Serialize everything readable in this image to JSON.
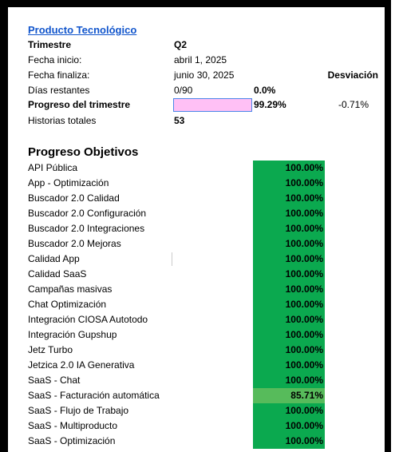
{
  "header": {
    "title": "Producto Tecnológico"
  },
  "summary": {
    "quarter": {
      "label": "Trimestre",
      "value": "Q2"
    },
    "start": {
      "label": "Fecha inicio:",
      "value": "abril 1, 2025"
    },
    "end": {
      "label": "Fecha finaliza:",
      "value": "junio 30, 2025",
      "deviation_header": "Desviación"
    },
    "days": {
      "label": "Días restantes",
      "value": "0/90",
      "percent": "0.0%"
    },
    "progress": {
      "label": "Progreso del trimestre",
      "percent": "99.29%",
      "deviation": "-0.71%"
    },
    "stories": {
      "label": "Historias totales",
      "value": "53"
    }
  },
  "objectives": {
    "title": "Progreso Objetivos",
    "items": [
      {
        "name": "API Pública",
        "progress": "100.00%",
        "color": "#0ba94f"
      },
      {
        "name": "App - Optimización",
        "progress": "100.00%",
        "color": "#0ba94f"
      },
      {
        "name": "Buscador 2.0 Calidad",
        "progress": "100.00%",
        "color": "#0ba94f"
      },
      {
        "name": "Buscador 2.0 Configuración",
        "progress": "100.00%",
        "color": "#0ba94f"
      },
      {
        "name": "Buscador 2.0 Integraciones",
        "progress": "100.00%",
        "color": "#0ba94f"
      },
      {
        "name": "Buscador 2.0 Mejoras",
        "progress": "100.00%",
        "color": "#0ba94f"
      },
      {
        "name": "Calidad App",
        "progress": "100.00%",
        "color": "#0ba94f"
      },
      {
        "name": "Calidad SaaS",
        "progress": "100.00%",
        "color": "#0ba94f"
      },
      {
        "name": "Campañas masivas",
        "progress": "100.00%",
        "color": "#0ba94f"
      },
      {
        "name": "Chat Optimización",
        "progress": "100.00%",
        "color": "#0ba94f"
      },
      {
        "name": "Integración CIOSA Autotodo",
        "progress": "100.00%",
        "color": "#0ba94f"
      },
      {
        "name": "Integración Gupshup",
        "progress": "100.00%",
        "color": "#0ba94f"
      },
      {
        "name": "Jetz Turbo",
        "progress": "100.00%",
        "color": "#0ba94f"
      },
      {
        "name": "Jetzica 2.0 IA Generativa",
        "progress": "100.00%",
        "color": "#0ba94f"
      },
      {
        "name": "SaaS - Chat",
        "progress": "100.00%",
        "color": "#0ba94f"
      },
      {
        "name": "SaaS - Facturación automática",
        "progress": "85.71%",
        "color": "#57bb5b"
      },
      {
        "name": "SaaS - Flujo de Trabajo",
        "progress": "100.00%",
        "color": "#0ba94f"
      },
      {
        "name": "SaaS - Multiproducto",
        "progress": "100.00%",
        "color": "#0ba94f"
      },
      {
        "name": "SaaS - Optimización",
        "progress": "100.00%",
        "color": "#0ba94f"
      }
    ]
  }
}
